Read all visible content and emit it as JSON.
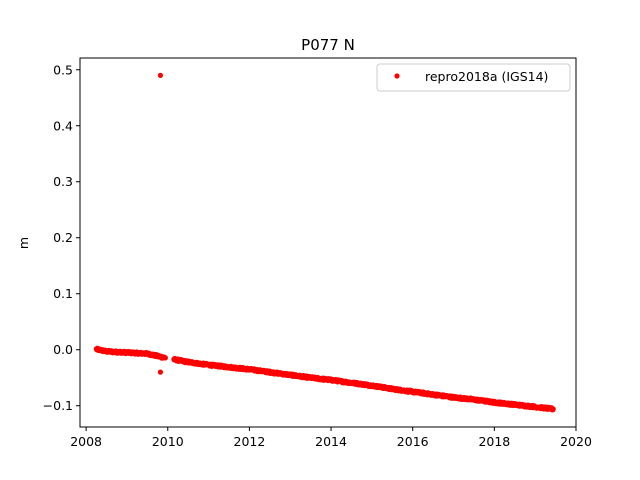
{
  "chart_data": {
    "type": "scatter",
    "title": "P077 N",
    "xlabel": "",
    "ylabel": "m",
    "xlim": [
      2007.85,
      2020.0
    ],
    "ylim": [
      -0.138,
      0.521
    ],
    "xticks": [
      2008,
      2010,
      2012,
      2014,
      2016,
      2018,
      2020
    ],
    "yticks": [
      -0.1,
      0.0,
      0.1,
      0.2,
      0.3,
      0.4,
      0.5
    ],
    "xtick_labels": [
      "2008",
      "2010",
      "2012",
      "2014",
      "2016",
      "2018",
      "2020"
    ],
    "ytick_labels": [
      "−0.1",
      "0.0",
      "0.1",
      "0.2",
      "0.3",
      "0.4",
      "0.5"
    ],
    "grid": false,
    "legend_position": "top-right",
    "series": [
      {
        "name": "repro2018a (IGS14)",
        "color": "#ff0000",
        "marker": "dot",
        "trend": {
          "x": [
            2008.25,
            2008.5,
            2009.0,
            2009.5,
            2009.85,
            2010.2,
            2010.5,
            2011.0,
            2011.5,
            2012.0,
            2012.5,
            2013.0,
            2013.5,
            2014.0,
            2014.5,
            2015.0,
            2015.5,
            2016.0,
            2016.5,
            2017.0,
            2017.5,
            2018.0,
            2018.5,
            2019.0,
            2019.45
          ],
          "y": [
            0.001,
            -0.003,
            -0.005,
            -0.007,
            -0.013,
            -0.018,
            -0.022,
            -0.027,
            -0.031,
            -0.035,
            -0.04,
            -0.045,
            -0.05,
            -0.054,
            -0.059,
            -0.064,
            -0.07,
            -0.075,
            -0.08,
            -0.085,
            -0.089,
            -0.094,
            -0.098,
            -0.102,
            -0.106
          ]
        },
        "gap": [
          2009.95,
          2010.15
        ],
        "outliers": [
          {
            "x": 2009.82,
            "y": 0.49
          },
          {
            "x": 2009.82,
            "y": -0.04
          }
        ]
      }
    ]
  }
}
